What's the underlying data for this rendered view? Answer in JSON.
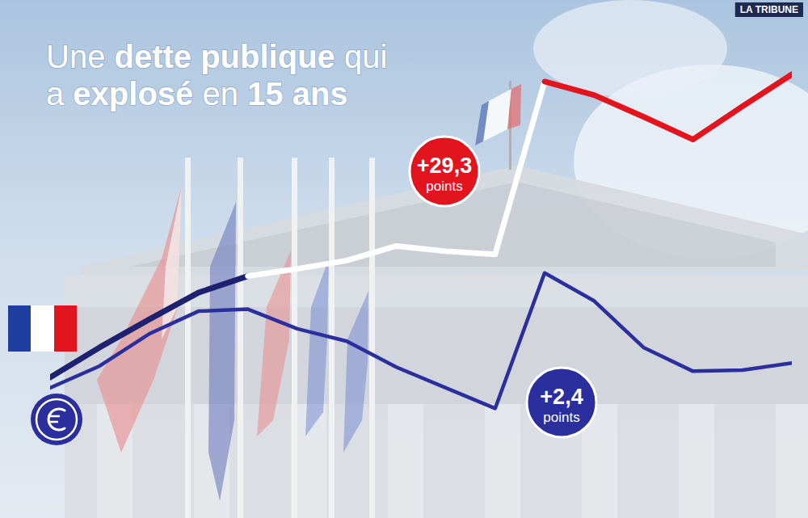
{
  "chart_data": {
    "type": "line",
    "title": [
      [
        "Une ",
        "dette publique",
        " qui"
      ],
      [
        "a ",
        "explosé",
        " en ",
        "15 ans"
      ]
    ],
    "source": "LA TRIBUNE",
    "categories": [
      null,
      null,
      null,
      null,
      null,
      null,
      null,
      null,
      null,
      null,
      null,
      null,
      null,
      null,
      null,
      null
    ],
    "series": [
      {
        "values": [
          83.2,
          86.1,
          88.8,
          91.4,
          93.0,
          93.7,
          94.5,
          95.9,
          95.4,
          95.1,
          111.8,
          110.5,
          108.4,
          106.2,
          109.4,
          112.5
        ],
        "colors": [
          "#1e2170",
          "#1e2170",
          "#1e2170",
          "#1e2170",
          "#1e2170",
          "#ffffff",
          "#ffffff",
          "#ffffff",
          "#ffffff",
          "#ffffff",
          "#ffffff",
          "#e2151f",
          "#e2151f",
          "#e2151f",
          "#e2151f",
          "#e2151f"
        ]
      },
      {
        "values": [
          82.2,
          84.3,
          87.4,
          89.6,
          89.8,
          87.9,
          86.7,
          84.2,
          82.2,
          80.2,
          93.3,
          90.6,
          86.1,
          83.8,
          83.9,
          84.6
        ],
        "color": "#2b2f9e"
      }
    ],
    "ylim": [
      75,
      115
    ],
    "tick_labels": false,
    "annotations": [
      {
        "text": "+29,3",
        "unit": "points",
        "color": "#e2151f"
      },
      {
        "text": "+2,4",
        "unit": "points",
        "color": "#2b2f9e"
      }
    ]
  }
}
